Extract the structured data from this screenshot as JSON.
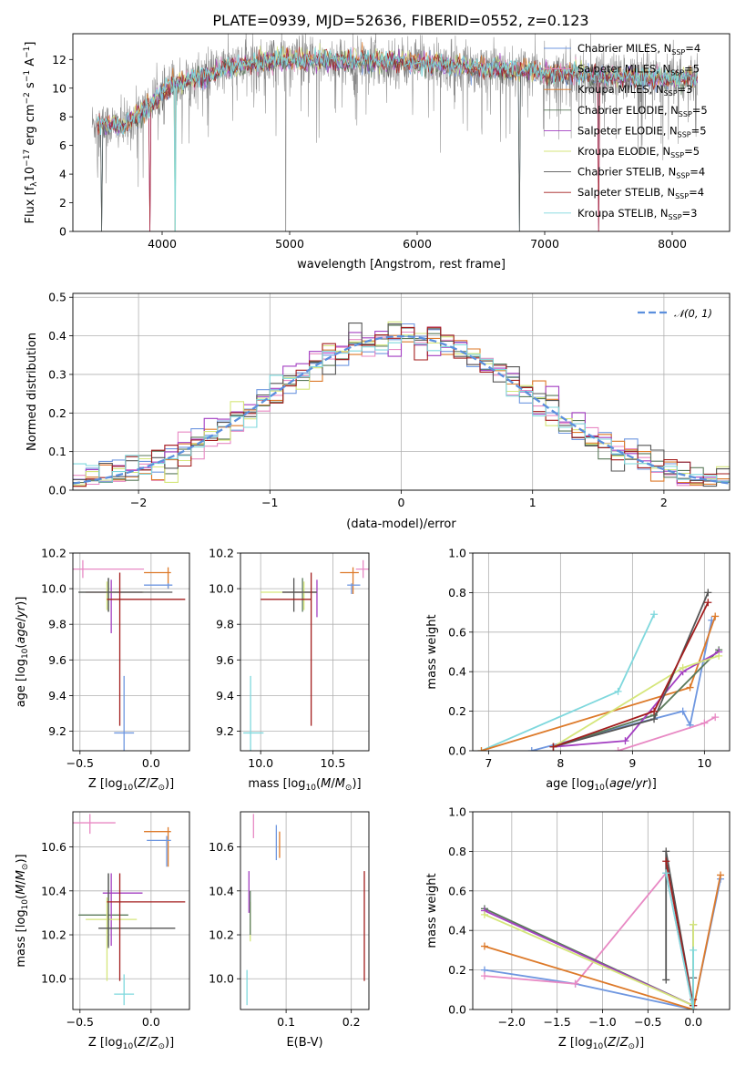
{
  "figure_title": "PLATE=0939, MJD=52636, FIBERID=0552, z=0.123",
  "colors": {
    "Chabrier MILES": "#6f97e0",
    "Salpeter MILES": "#e889c4",
    "Kroupa MILES": "#dd7a2a",
    "Chabrier ELODIE": "#5b7a5b",
    "Salpeter ELODIE": "#a33fc2",
    "Kroupa ELODIE": "#d5e67b",
    "Chabrier STELIB": "#555555",
    "Salpeter STELIB": "#a31d1d",
    "Kroupa STELIB": "#7fd8dd"
  },
  "legend_top": [
    {
      "base": "Chabrier MILES, N",
      "n": "4"
    },
    {
      "base": "Salpeter MILES, N",
      "n": "5"
    },
    {
      "base": "Kroupa MILES, N",
      "n": "3"
    },
    {
      "base": "Chabrier ELODIE, N",
      "n": "5"
    },
    {
      "base": "Salpeter ELODIE, N",
      "n": "5"
    },
    {
      "base": "Kroupa ELODIE, N",
      "n": "5"
    },
    {
      "base": "Chabrier STELIB, N",
      "n": "4"
    },
    {
      "base": "Salpeter STELIB, N",
      "n": "4"
    },
    {
      "base": "Kroupa STELIB, N",
      "n": "3"
    }
  ],
  "legend_sub": "SSP",
  "legend_gauss": "𝒩(0, 1)",
  "chart_data": [
    {
      "type": "line",
      "panel": "spectrum",
      "xlabel": "wavelength [Angstrom, rest frame]",
      "ylabel": "Flux [f_λ 10^-17 erg cm^-2 s^-1 A^-1]",
      "xlim": [
        3300,
        8450
      ],
      "ylim": [
        0,
        13.8
      ],
      "xticks": [
        4000,
        5000,
        6000,
        7000,
        8000
      ],
      "yticks": [
        0,
        2,
        4,
        6,
        8,
        10,
        12
      ],
      "data_wavelength_range": [
        3450,
        8200
      ],
      "continuum": {
        "x": [
          3450,
          3700,
          3900,
          4100,
          4300,
          4500,
          4800,
          5000,
          5500,
          6000,
          6500,
          7000,
          7500,
          8000,
          8200
        ],
        "y": [
          7.5,
          7.3,
          8.8,
          10.3,
          10.8,
          11.4,
          11.9,
          12.0,
          11.9,
          11.8,
          11.4,
          11.1,
          10.8,
          10.7,
          10.7
        ]
      },
      "model_dropouts": [
        3530,
        3900,
        4100,
        6800,
        7420
      ],
      "data_dropouts": [
        4970,
        4100
      ]
    },
    {
      "type": "histogram",
      "panel": "residuals",
      "xlabel": "(data-model)/error",
      "ylabel": "Normed distribution",
      "xlim": [
        -2.5,
        2.5
      ],
      "ylim": [
        0,
        0.51
      ],
      "xticks": [
        -2,
        -1,
        0,
        1,
        2
      ],
      "yticks": [
        0.0,
        0.1,
        0.2,
        0.3,
        0.4,
        0.5
      ],
      "bin_width": 0.1,
      "gaussian": {
        "mu": 0,
        "sigma": 1,
        "label": "𝒩(0, 1)"
      }
    },
    {
      "type": "errorbar",
      "panel": "age-vs-Z",
      "xlabel": "Z [log10(Z/Z_sun)]",
      "ylabel": "age [log10(age/yr)]",
      "xlim": [
        -0.55,
        0.27
      ],
      "ylim": [
        9.09,
        10.2
      ],
      "xticks": [
        -0.5,
        0.0
      ],
      "yticks": [
        9.2,
        9.4,
        9.6,
        9.8,
        10.0,
        10.2
      ],
      "points": [
        {
          "s": "Chabrier MILES",
          "x": -0.19,
          "y": 9.19,
          "xl": -0.26,
          "xh": -0.12,
          "yl": 8.9,
          "yh": 9.51
        },
        {
          "s": "Salpeter MILES",
          "x": -0.48,
          "y": 10.11,
          "xl": -0.55,
          "xh": -0.05,
          "yl": 10.06,
          "yh": 10.16
        },
        {
          "s": "Kroupa MILES",
          "x": 0.12,
          "y": 10.09,
          "xl": -0.05,
          "xh": 0.14,
          "yl": 10.0,
          "yh": 10.12
        },
        {
          "s": "Chabrier ELODIE",
          "x": -0.3,
          "y": 9.98,
          "xl": -0.51,
          "xh": -0.06,
          "yl": 9.87,
          "yh": 10.06
        },
        {
          "s": "Salpeter ELODIE",
          "x": -0.28,
          "y": 9.98,
          "xl": -0.46,
          "xh": -0.06,
          "yl": 9.75,
          "yh": 10.05
        },
        {
          "s": "Kroupa ELODIE",
          "x": -0.31,
          "y": 9.98,
          "xl": -0.46,
          "xh": -0.05,
          "yl": 9.88,
          "yh": 10.04
        },
        {
          "s": "Chabrier STELIB",
          "x": -0.3,
          "y": 9.98,
          "xl": -0.51,
          "xh": 0.15,
          "yl": 9.87,
          "yh": 10.06
        },
        {
          "s": "Salpeter STELIB",
          "x": -0.22,
          "y": 9.94,
          "xl": -0.31,
          "xh": 0.24,
          "yl": 9.23,
          "yh": 10.09
        },
        {
          "s": "Chabrier MILES",
          "x": 0.12,
          "y": 10.02,
          "xl": -0.05,
          "xh": 0.15,
          "yl": 10.0,
          "yh": 10.03
        }
      ]
    },
    {
      "type": "errorbar",
      "panel": "age-vs-mass",
      "xlabel": "mass [log10(M/M_sun)]",
      "ylabel": "",
      "xlim": [
        9.86,
        10.75
      ],
      "ylim": [
        9.09,
        10.2
      ],
      "xticks": [
        10.0,
        10.5
      ],
      "yticks": [
        9.2,
        9.4,
        9.6,
        9.8,
        10.0,
        10.2
      ],
      "points": [
        {
          "s": "Kroupa STELIB",
          "x": 9.93,
          "y": 9.19,
          "xl": 9.88,
          "xh": 10.02,
          "yl": 8.9,
          "yh": 9.51
        },
        {
          "s": "Salpeter MILES",
          "x": 10.71,
          "y": 10.11,
          "xl": 10.66,
          "xh": 10.76,
          "yl": 10.06,
          "yh": 10.16
        },
        {
          "s": "Kroupa MILES",
          "x": 10.64,
          "y": 10.09,
          "xl": 10.55,
          "xh": 10.68,
          "yl": 9.97,
          "yh": 10.12
        },
        {
          "s": "Chabrier MILES",
          "x": 10.63,
          "y": 10.02,
          "xl": 10.6,
          "xh": 10.69,
          "yl": 9.97,
          "yh": 10.03
        },
        {
          "s": "Chabrier ELODIE",
          "x": 10.29,
          "y": 9.98,
          "xl": 10.15,
          "xh": 10.39,
          "yl": 9.87,
          "yh": 10.06
        },
        {
          "s": "Salpeter ELODIE",
          "x": 10.39,
          "y": 9.98,
          "xl": 10.15,
          "xh": 10.39,
          "yl": 9.84,
          "yh": 10.05
        },
        {
          "s": "Kroupa ELODIE",
          "x": 10.3,
          "y": 9.98,
          "xl": 10.0,
          "xh": 10.39,
          "yl": 9.88,
          "yh": 10.04
        },
        {
          "s": "Chabrier STELIB",
          "x": 10.23,
          "y": 9.98,
          "xl": 10.15,
          "xh": 10.39,
          "yl": 9.87,
          "yh": 10.06
        },
        {
          "s": "Salpeter STELIB",
          "x": 10.35,
          "y": 9.94,
          "xl": 10.0,
          "xh": 10.35,
          "yl": 9.23,
          "yh": 10.09
        }
      ]
    },
    {
      "type": "line",
      "panel": "massweight-vs-age",
      "xlabel": "age [log10(age/yr)]",
      "ylabel": "mass weight",
      "xlim": [
        6.78,
        10.35
      ],
      "ylim": [
        0,
        1.0
      ],
      "xticks": [
        7,
        8,
        9,
        10
      ],
      "yticks": [
        0.0,
        0.2,
        0.4,
        0.6,
        0.8,
        1.0
      ],
      "series": [
        {
          "s": "Kroupa STELIB",
          "x": [
            6.9,
            8.8,
            9.3
          ],
          "y": [
            0.0,
            0.3,
            0.69
          ]
        },
        {
          "s": "Chabrier MILES",
          "x": [
            7.6,
            9.7,
            9.8,
            10.1
          ],
          "y": [
            0.0,
            0.2,
            0.13,
            0.66
          ]
        },
        {
          "s": "Salpeter MILES",
          "x": [
            8.8,
            10.0,
            10.15
          ],
          "y": [
            0.0,
            0.14,
            0.17
          ]
        },
        {
          "s": "Kroupa MILES",
          "x": [
            6.9,
            9.8,
            10.15
          ],
          "y": [
            0.0,
            0.32,
            0.68
          ]
        },
        {
          "s": "Chabrier ELODIE",
          "x": [
            7.9,
            9.3,
            10.2
          ],
          "y": [
            0.02,
            0.18,
            0.51
          ]
        },
        {
          "s": "Salpeter ELODIE",
          "x": [
            7.9,
            8.9,
            9.7,
            10.2
          ],
          "y": [
            0.02,
            0.05,
            0.4,
            0.5
          ]
        },
        {
          "s": "Kroupa ELODIE",
          "x": [
            7.9,
            9.7,
            10.2
          ],
          "y": [
            0.02,
            0.42,
            0.48
          ]
        },
        {
          "s": "Chabrier STELIB",
          "x": [
            7.9,
            9.3,
            10.05
          ],
          "y": [
            0.02,
            0.16,
            0.8
          ]
        },
        {
          "s": "Salpeter STELIB",
          "x": [
            7.9,
            9.3,
            10.05
          ],
          "y": [
            0.02,
            0.2,
            0.75
          ]
        }
      ]
    },
    {
      "type": "errorbar",
      "panel": "mass-vs-Z",
      "xlabel": "Z [log10(Z/Z_sun)]",
      "ylabel": "mass [log10(M/M_sun)]",
      "xlim": [
        -0.55,
        0.27
      ],
      "ylim": [
        9.86,
        10.76
      ],
      "xticks": [
        -0.5,
        0.0
      ],
      "yticks": [
        10.0,
        10.2,
        10.4,
        10.6
      ],
      "points": [
        {
          "s": "Kroupa STELIB",
          "x": -0.19,
          "y": 9.93,
          "xl": -0.26,
          "xh": -0.12,
          "yl": 9.88,
          "yh": 10.02
        },
        {
          "s": "Salpeter MILES",
          "x": -0.43,
          "y": 10.71,
          "xl": -0.55,
          "xh": -0.25,
          "yl": 10.66,
          "yh": 10.75
        },
        {
          "s": "Kroupa MILES",
          "x": 0.12,
          "y": 10.67,
          "xl": -0.05,
          "xh": 0.14,
          "yl": 10.51,
          "yh": 10.69
        },
        {
          "s": "Chabrier MILES",
          "x": 0.11,
          "y": 10.63,
          "xl": -0.03,
          "xh": 0.14,
          "yl": 10.51,
          "yh": 10.65
        },
        {
          "s": "Chabrier ELODIE",
          "x": -0.3,
          "y": 10.29,
          "xl": -0.51,
          "xh": -0.16,
          "yl": 10.15,
          "yh": 10.48
        },
        {
          "s": "Salpeter ELODIE",
          "x": -0.28,
          "y": 10.39,
          "xl": -0.34,
          "xh": -0.06,
          "yl": 10.15,
          "yh": 10.48
        },
        {
          "s": "Kroupa ELODIE",
          "x": -0.31,
          "y": 10.27,
          "xl": -0.46,
          "xh": -0.1,
          "yl": 9.99,
          "yh": 10.37
        },
        {
          "s": "Chabrier STELIB",
          "x": -0.3,
          "y": 10.23,
          "xl": -0.37,
          "xh": 0.17,
          "yl": 10.14,
          "yh": 10.48
        },
        {
          "s": "Salpeter STELIB",
          "x": -0.22,
          "y": 10.35,
          "xl": -0.31,
          "xh": 0.24,
          "yl": 9.99,
          "yh": 10.48
        }
      ]
    },
    {
      "type": "errorbar",
      "panel": "mass-vs-EBV",
      "xlabel": "E(B-V)",
      "ylabel": "",
      "xlim": [
        0.03,
        0.227
      ],
      "ylim": [
        9.86,
        10.76
      ],
      "xticks": [
        0.1,
        0.2
      ],
      "yticks": [
        10.0,
        10.2,
        10.4,
        10.6
      ],
      "points": [
        {
          "s": "Kroupa STELIB",
          "x": 0.04,
          "y": 9.93,
          "yl": 9.88,
          "yh": 10.04
        },
        {
          "s": "Salpeter MILES",
          "x": 0.05,
          "y": 10.7,
          "yl": 10.64,
          "yh": 10.75
        },
        {
          "s": "Kroupa MILES",
          "x": 0.09,
          "y": 10.64,
          "yl": 10.55,
          "yh": 10.67
        },
        {
          "s": "Chabrier MILES",
          "x": 0.085,
          "y": 10.63,
          "yl": 10.54,
          "yh": 10.7
        },
        {
          "s": "Salpeter ELODIE",
          "x": 0.043,
          "y": 10.4,
          "yl": 10.3,
          "yh": 10.49
        },
        {
          "s": "Kroupa ELODIE",
          "x": 0.045,
          "y": 10.27,
          "yl": 10.17,
          "yh": 10.35
        },
        {
          "s": "Chabrier ELODIE",
          "x": 0.045,
          "y": 10.3,
          "yl": 10.2,
          "yh": 10.4
        },
        {
          "s": "Salpeter STELIB",
          "x": 0.22,
          "y": 10.35,
          "yl": 9.99,
          "yh": 10.49
        }
      ]
    },
    {
      "type": "line",
      "panel": "massweight-vs-Z",
      "xlabel": "Z [log10(Z/Z_sun)]",
      "ylabel": "mass weight",
      "xlim": [
        -2.43,
        0.4
      ],
      "ylim": [
        0,
        1.0
      ],
      "xticks": [
        -2.0,
        -1.5,
        -1.0,
        -0.5,
        0.0
      ],
      "yticks": [
        0.0,
        0.2,
        0.4,
        0.6,
        0.8,
        1.0
      ],
      "series": [
        {
          "s": "Chabrier MILES",
          "x": [
            -2.3,
            -1.3,
            0.0,
            0.3
          ],
          "y": [
            0.2,
            0.13,
            0.0,
            0.66
          ]
        },
        {
          "s": "Salpeter MILES",
          "x": [
            -2.3,
            -1.3,
            -0.3,
            0.0
          ],
          "y": [
            0.17,
            0.13,
            0.69,
            0.0
          ]
        },
        {
          "s": "Kroupa MILES",
          "x": [
            -2.3,
            0.0,
            0.3
          ],
          "y": [
            0.32,
            0.0,
            0.68
          ]
        },
        {
          "s": "Chabrier ELODIE",
          "x": [
            -2.3,
            0.0,
            0.0
          ],
          "y": [
            0.51,
            0.02,
            0.43
          ]
        },
        {
          "s": "Salpeter ELODIE",
          "x": [
            -2.3,
            0.0
          ],
          "y": [
            0.5,
            0.02
          ]
        },
        {
          "s": "Kroupa ELODIE",
          "x": [
            -2.3,
            0.0,
            0.0
          ],
          "y": [
            0.48,
            0.02,
            0.43
          ]
        },
        {
          "s": "Chabrier STELIB",
          "x": [
            -0.3,
            -0.3,
            0.0,
            0.0
          ],
          "y": [
            0.15,
            0.8,
            0.02,
            0.16
          ]
        },
        {
          "s": "Salpeter STELIB",
          "x": [
            -0.3,
            0.0,
            0.0
          ],
          "y": [
            0.75,
            0.02,
            0.05
          ]
        },
        {
          "s": "Kroupa STELIB",
          "x": [
            -0.3,
            0.0,
            0.0
          ],
          "y": [
            0.69,
            0.0,
            0.3
          ]
        }
      ]
    }
  ]
}
